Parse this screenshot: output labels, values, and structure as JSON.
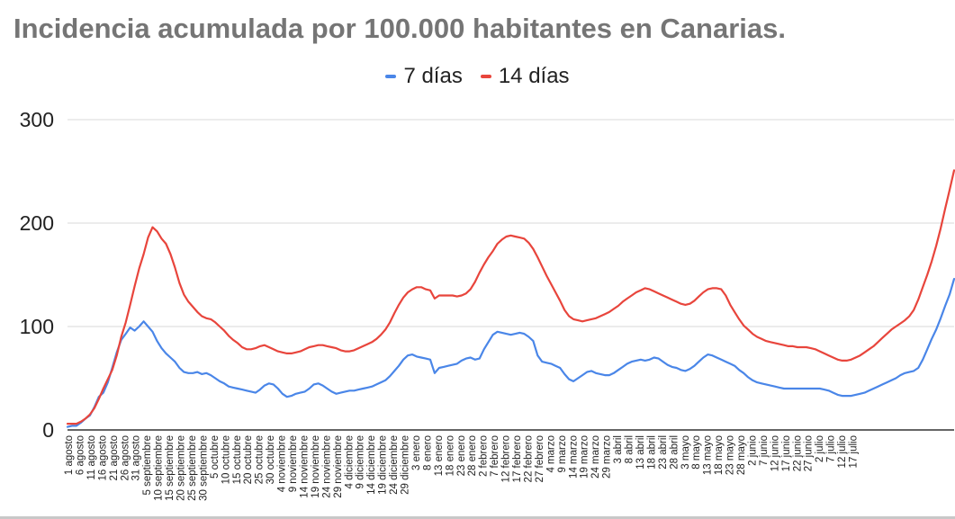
{
  "chart_data": {
    "type": "line",
    "title": "Incidencia acumulada por 100.000 habitantes en Canarias.",
    "xlabel": "",
    "ylabel": "",
    "ylim": [
      0,
      300
    ],
    "y_ticks": [
      "0",
      "100",
      "200",
      "300"
    ],
    "grid": true,
    "legend_position": "top",
    "colors": {
      "7 días": "#4a86e8",
      "14 días": "#e8453c",
      "grid": "#d9d9d9",
      "axis": "#333333"
    },
    "x_tick_labels": [
      "1 agosto",
      "6 agosto",
      "11 agosto",
      "16 agosto",
      "21 agosto",
      "26 agosto",
      "31 agosto",
      "5 septiembre",
      "10 septiembre",
      "15 septiembre",
      "20 septiembre",
      "25 septiembre",
      "30 septiembre",
      "5 octubre",
      "10 octubre",
      "15 octubre",
      "20 octubre",
      "25 octubre",
      "30 octubre",
      "4 noviembre",
      "9 noviembre",
      "14 noviembre",
      "19 noviembre",
      "24 noviembre",
      "29 noviembre",
      "4 diciembre",
      "9 diciembre",
      "14 diciembre",
      "19 diciembre",
      "24 diciembre",
      "29 diciembre",
      "3 enero",
      "8 enero",
      "13 enero",
      "18 enero",
      "23 enero",
      "28 enero",
      "2 febrero",
      "7 febrero",
      "12 febrero",
      "17 febrero",
      "22 febrero",
      "27 febrero",
      "4 marzo",
      "9 marzo",
      "14 marzo",
      "19 marzo",
      "24 marzo",
      "29 marzo",
      "3 abril",
      "8 abril",
      "13 abril",
      "18 abril",
      "23 abril",
      "28 abril",
      "3 mayo",
      "8 mayo",
      "13 mayo",
      "18 mayo",
      "23 mayo",
      "28 mayo",
      "2 junio",
      "7 junio",
      "12 junio",
      "17 junio",
      "22 junio",
      "27 junio",
      "2 julio",
      "7 julio",
      "12 julio",
      "17 julio"
    ],
    "series": [
      {
        "name": "7 días",
        "values": [
          3,
          4,
          4,
          7,
          11,
          14,
          22,
          32,
          36,
          46,
          60,
          75,
          87,
          93,
          99,
          96,
          100,
          105,
          100,
          95,
          86,
          79,
          74,
          70,
          66,
          60,
          56,
          55,
          55,
          56,
          54,
          55,
          53,
          50,
          47,
          45,
          42,
          41,
          40,
          39,
          38,
          37,
          36,
          39,
          43,
          45,
          44,
          40,
          35,
          32,
          33,
          35,
          36,
          37,
          40,
          44,
          45,
          43,
          40,
          37,
          35,
          36,
          37,
          38,
          38,
          39,
          40,
          41,
          42,
          44,
          46,
          48,
          52,
          57,
          62,
          68,
          72,
          73,
          71,
          70,
          69,
          68,
          55,
          60,
          61,
          62,
          63,
          64,
          67,
          69,
          70,
          68,
          69,
          78,
          85,
          92,
          95,
          94,
          93,
          92,
          93,
          94,
          93,
          90,
          86,
          72,
          66,
          65,
          64,
          62,
          60,
          54,
          49,
          47,
          50,
          53,
          56,
          57,
          55,
          54,
          53,
          53,
          55,
          58,
          61,
          64,
          66,
          67,
          68,
          67,
          68,
          70,
          69,
          66,
          63,
          61,
          60,
          58,
          57,
          59,
          62,
          66,
          70,
          73,
          72,
          70,
          68,
          66,
          64,
          62,
          58,
          55,
          51,
          48,
          46,
          45,
          44,
          43,
          42,
          41,
          40,
          40,
          40,
          40,
          40,
          40,
          40,
          40,
          40,
          39,
          38,
          36,
          34,
          33,
          33,
          33,
          34,
          35,
          36,
          38,
          40,
          42,
          44,
          46,
          48,
          50,
          53,
          55,
          56,
          57,
          60,
          68,
          78,
          88,
          97,
          108,
          120,
          131,
          146
        ]
      },
      {
        "name": "14 días",
        "values": [
          6,
          6,
          6,
          8,
          11,
          15,
          21,
          30,
          40,
          49,
          58,
          72,
          90,
          104,
          121,
          139,
          156,
          170,
          186,
          196,
          192,
          185,
          180,
          170,
          157,
          142,
          131,
          124,
          119,
          114,
          110,
          108,
          107,
          104,
          100,
          96,
          91,
          87,
          84,
          80,
          78,
          78,
          79,
          81,
          82,
          80,
          78,
          76,
          75,
          74,
          74,
          75,
          76,
          78,
          80,
          81,
          82,
          82,
          81,
          80,
          79,
          77,
          76,
          76,
          77,
          79,
          81,
          83,
          85,
          88,
          92,
          97,
          104,
          113,
          121,
          128,
          133,
          136,
          138,
          138,
          136,
          135,
          127,
          130,
          130,
          130,
          130,
          129,
          130,
          132,
          136,
          143,
          152,
          160,
          167,
          173,
          180,
          184,
          187,
          188,
          187,
          186,
          185,
          181,
          175,
          167,
          158,
          149,
          141,
          133,
          125,
          116,
          110,
          107,
          106,
          105,
          106,
          107,
          108,
          110,
          112,
          114,
          117,
          120,
          124,
          127,
          130,
          133,
          135,
          137,
          136,
          134,
          132,
          130,
          128,
          126,
          124,
          122,
          121,
          122,
          125,
          129,
          133,
          136,
          137,
          137,
          136,
          130,
          121,
          114,
          107,
          101,
          97,
          93,
          90,
          88,
          86,
          85,
          84,
          83,
          82,
          81,
          81,
          80,
          80,
          80,
          79,
          78,
          76,
          74,
          72,
          70,
          68,
          67,
          67,
          68,
          70,
          72,
          75,
          78,
          81,
          85,
          89,
          93,
          97,
          100,
          103,
          106,
          110,
          116,
          126,
          138,
          150,
          163,
          178,
          195,
          214,
          232,
          251
        ]
      }
    ]
  }
}
